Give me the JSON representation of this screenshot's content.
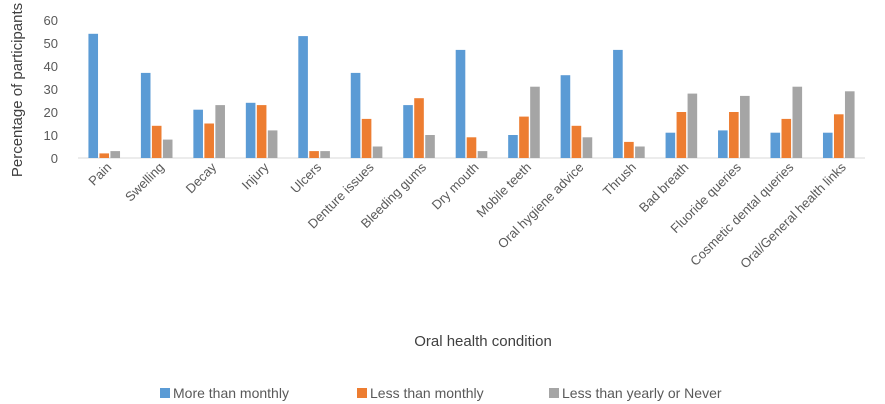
{
  "chart_data": {
    "type": "bar",
    "title": "",
    "xlabel": "Oral health condition",
    "ylabel": "Percentage of participants",
    "ylim": [
      0,
      60
    ],
    "yticks": [
      0,
      10,
      20,
      30,
      40,
      50,
      60
    ],
    "grid": false,
    "legend_position": "bottom",
    "categories": [
      "Pain",
      "Swelling",
      "Decay",
      "Injury",
      "Ulcers",
      "Denture issues",
      "Bleeding gums",
      "Dry mouth",
      "Mobile teeth",
      "Oral hygiene advice",
      "Thrush",
      "Bad breath",
      "Fluoride queries",
      "Cosmetic dental queries",
      "Oral/General health links"
    ],
    "series": [
      {
        "name": "More than monthly",
        "color": "#5B9BD5",
        "values": [
          54,
          37,
          21,
          24,
          53,
          37,
          23,
          47,
          10,
          36,
          47,
          11,
          12,
          11,
          11
        ]
      },
      {
        "name": "Less than monthly",
        "color": "#ED7D31",
        "values": [
          2,
          14,
          15,
          23,
          3,
          17,
          26,
          9,
          18,
          14,
          7,
          20,
          20,
          17,
          19
        ]
      },
      {
        "name": "Less than yearly or Never",
        "color": "#A5A5A5",
        "values": [
          3,
          8,
          23,
          12,
          3,
          5,
          10,
          3,
          31,
          9,
          5,
          28,
          27,
          31,
          29
        ]
      }
    ]
  }
}
